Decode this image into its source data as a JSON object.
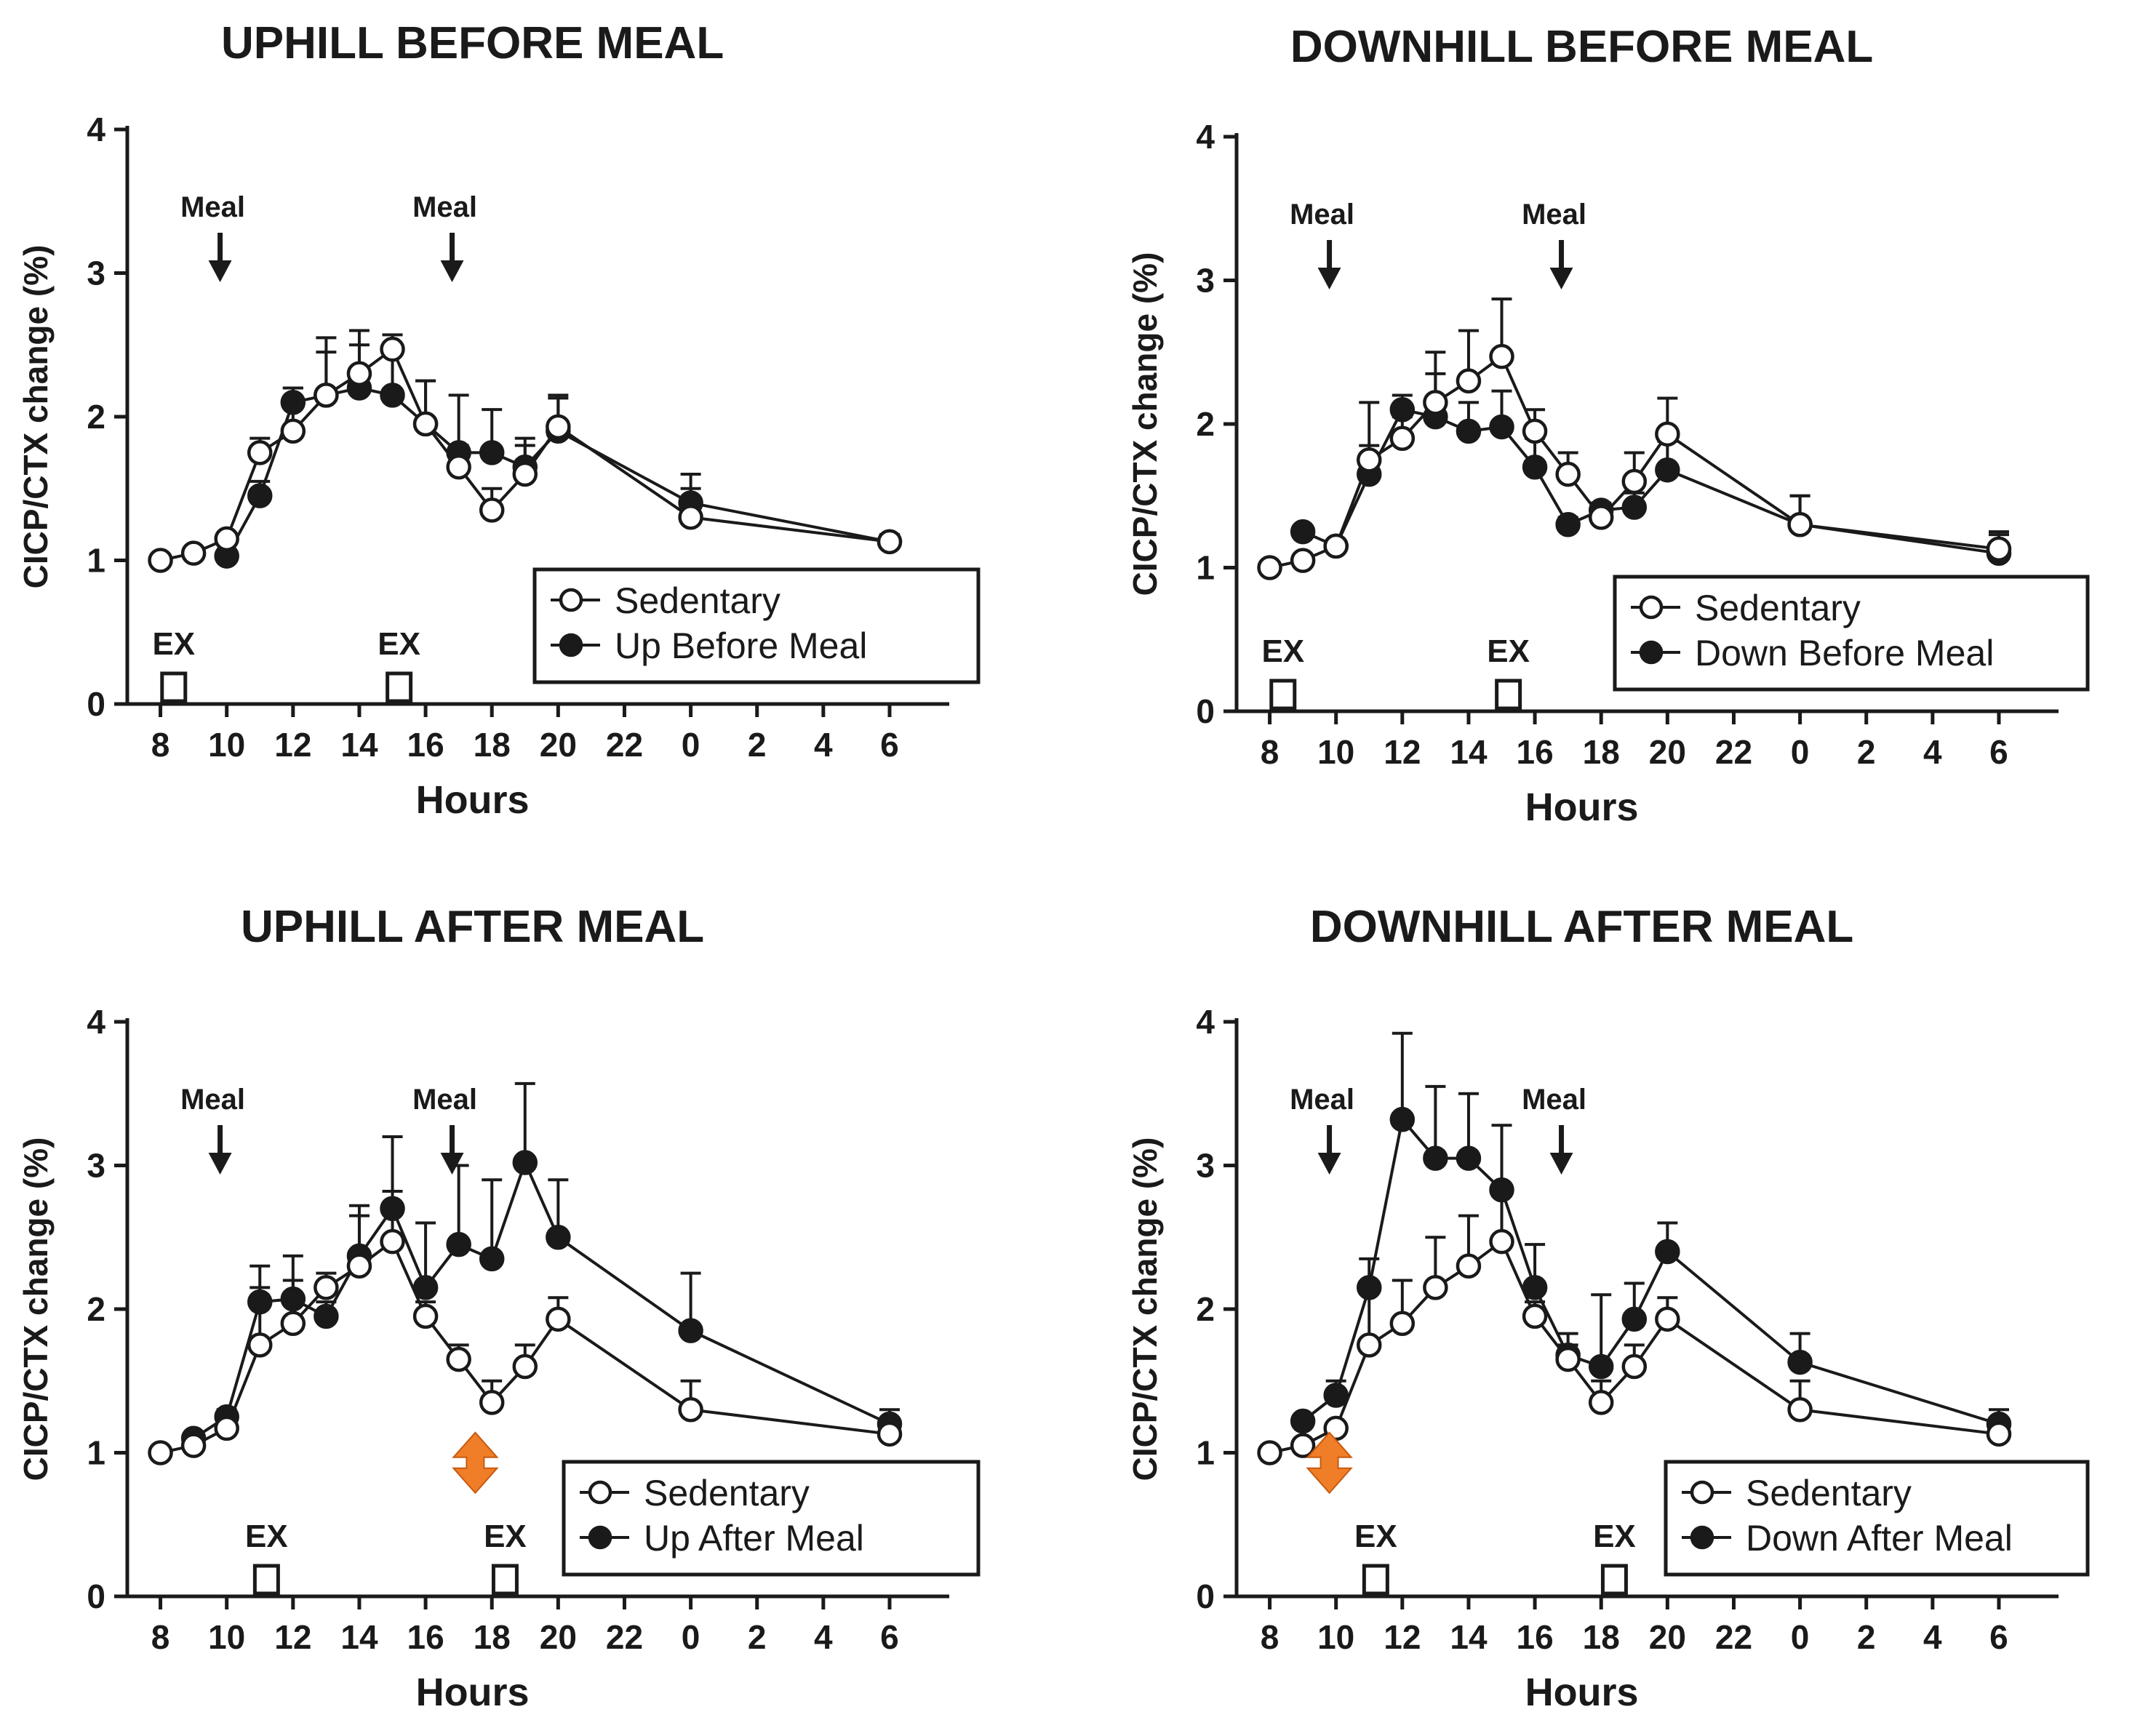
{
  "colors": {
    "ink": "#1a1a1a",
    "open_marker_fill": "#ffffff",
    "highlight_arrow": "#f07d27"
  },
  "chart_data": [
    {
      "type": "line",
      "title": "UPHILL BEFORE MEAL",
      "xlabel": "Hours",
      "ylabel": "CICP/CTX change (%)",
      "ylim": [
        0,
        4
      ],
      "yticks": [
        "0",
        "1",
        "2",
        "3",
        "4"
      ],
      "xticks": [
        "8",
        "10",
        "12",
        "14",
        "16",
        "18",
        "20",
        "22",
        "0",
        "2",
        "4",
        "6"
      ],
      "x": [
        8,
        9,
        10,
        11,
        12,
        13,
        14,
        15,
        16,
        17,
        18,
        19,
        20,
        24,
        30
      ],
      "meal_times": [
        9.8,
        16.8
      ],
      "meal_label": "Meal",
      "exercise_times": [
        8.4,
        15.2
      ],
      "exercise_label": "EX",
      "legend": [
        "Sedentary",
        "Up Before Meal"
      ],
      "legend_position": "bottom-right",
      "series": [
        {
          "name": "Sedentary",
          "marker": "open",
          "values": [
            1.0,
            1.05,
            1.15,
            1.75,
            1.9,
            2.15,
            2.3,
            2.47,
            1.95,
            1.65,
            1.35,
            1.6,
            1.93,
            1.3,
            1.13
          ],
          "error": [
            0,
            0,
            0,
            0.1,
            0.3,
            0.4,
            0.3,
            0.1,
            0.3,
            0.15,
            0.15,
            0.2,
            0.2,
            0.2,
            0.05
          ]
        },
        {
          "name": "Up Before Meal",
          "marker": "filled",
          "values": [
            null,
            null,
            1.03,
            1.45,
            2.1,
            2.15,
            2.2,
            2.15,
            1.95,
            1.75,
            1.75,
            1.65,
            1.9,
            1.4,
            1.13
          ],
          "error": [
            0,
            0,
            0,
            0.1,
            0.1,
            0.3,
            0.3,
            0.3,
            0.3,
            0.4,
            0.3,
            0.2,
            0.25,
            0.2,
            0.05
          ]
        }
      ]
    },
    {
      "type": "line",
      "title": "DOWNHILL BEFORE MEAL",
      "xlabel": "Hours",
      "ylabel": "CICP/CTX change (%)",
      "ylim": [
        0,
        4
      ],
      "yticks": [
        "0",
        "1",
        "2",
        "3",
        "4"
      ],
      "xticks": [
        "8",
        "10",
        "12",
        "14",
        "16",
        "18",
        "20",
        "22",
        "0",
        "2",
        "4",
        "6"
      ],
      "x": [
        8,
        9,
        10,
        11,
        12,
        13,
        14,
        15,
        16,
        17,
        18,
        19,
        20,
        24,
        30
      ],
      "meal_times": [
        9.8,
        16.8
      ],
      "meal_label": "Meal",
      "exercise_times": [
        8.4,
        15.2
      ],
      "exercise_label": "EX",
      "legend": [
        "Sedentary",
        "Down Before Meal"
      ],
      "legend_position": "bottom-right",
      "series": [
        {
          "name": "Sedentary",
          "marker": "open",
          "values": [
            1.0,
            1.05,
            1.15,
            1.75,
            1.9,
            2.15,
            2.3,
            2.47,
            1.95,
            1.65,
            1.35,
            1.6,
            1.93,
            1.3,
            1.13
          ],
          "error": [
            0,
            0,
            0,
            0.4,
            0.15,
            0.35,
            0.35,
            0.4,
            0.15,
            0.15,
            0.05,
            0.2,
            0.25,
            0.2,
            0.1
          ]
        },
        {
          "name": "Down Before Meal",
          "marker": "filled",
          "values": [
            null,
            1.25,
            1.15,
            1.65,
            2.1,
            2.05,
            1.95,
            1.98,
            1.7,
            1.3,
            1.4,
            1.42,
            1.68,
            1.3,
            1.1
          ],
          "error": [
            0,
            0,
            0,
            0.2,
            0.1,
            0.3,
            0.2,
            0.25,
            0.2,
            0.05,
            0.05,
            0.1,
            0.2,
            0.2,
            0.15
          ]
        }
      ]
    },
    {
      "type": "line",
      "title": "UPHILL AFTER MEAL",
      "xlabel": "Hours",
      "ylabel": "CICP/CTX change (%)",
      "ylim": [
        0,
        4
      ],
      "yticks": [
        "0",
        "1",
        "2",
        "3",
        "4"
      ],
      "xticks": [
        "8",
        "10",
        "12",
        "14",
        "16",
        "18",
        "20",
        "22",
        "0",
        "2",
        "4",
        "6"
      ],
      "x": [
        8,
        9,
        10,
        11,
        12,
        13,
        14,
        15,
        16,
        17,
        18,
        19,
        20,
        24,
        30
      ],
      "meal_times": [
        9.8,
        16.8
      ],
      "meal_label": "Meal",
      "exercise_times": [
        11.2,
        18.4
      ],
      "exercise_label": "EX",
      "legend": [
        "Sedentary",
        "Up After Meal"
      ],
      "legend_position": "bottom-right",
      "highlight_arrow_x": 17.5,
      "series": [
        {
          "name": "Sedentary",
          "marker": "open",
          "values": [
            1.0,
            1.05,
            1.17,
            1.75,
            1.9,
            2.15,
            2.3,
            2.47,
            1.95,
            1.65,
            1.35,
            1.6,
            1.93,
            1.3,
            1.13
          ],
          "error": [
            0,
            0,
            0,
            0.4,
            0.3,
            0.1,
            0.35,
            0.35,
            0.1,
            0.1,
            0.15,
            0.15,
            0.15,
            0.2,
            0.08
          ]
        },
        {
          "name": "Up After Meal",
          "marker": "filled",
          "values": [
            null,
            1.1,
            1.25,
            2.05,
            2.07,
            1.95,
            2.37,
            2.7,
            2.15,
            2.45,
            2.35,
            3.02,
            2.5,
            1.85,
            1.2
          ],
          "error": [
            0,
            0,
            0.05,
            0.25,
            0.3,
            0.1,
            0.35,
            0.5,
            0.45,
            0.55,
            0.55,
            0.55,
            0.4,
            0.4,
            0.1
          ]
        }
      ]
    },
    {
      "type": "line",
      "title": "DOWNHILL AFTER MEAL",
      "xlabel": "Hours",
      "ylabel": "CICP/CTX change (%)",
      "ylim": [
        0,
        4
      ],
      "yticks": [
        "0",
        "1",
        "2",
        "3",
        "4"
      ],
      "xticks": [
        "8",
        "10",
        "12",
        "14",
        "16",
        "18",
        "20",
        "22",
        "0",
        "2",
        "4",
        "6"
      ],
      "x": [
        8,
        9,
        10,
        11,
        12,
        13,
        14,
        15,
        16,
        17,
        18,
        19,
        20,
        24,
        30
      ],
      "meal_times": [
        9.8,
        16.8
      ],
      "meal_label": "Meal",
      "exercise_times": [
        11.2,
        18.4
      ],
      "exercise_label": "EX",
      "legend": [
        "Sedentary",
        "Down After Meal"
      ],
      "legend_position": "bottom-right",
      "highlight_arrow_x": 9.8,
      "series": [
        {
          "name": "Sedentary",
          "marker": "open",
          "values": [
            1.0,
            1.05,
            1.17,
            1.75,
            1.9,
            2.15,
            2.3,
            2.47,
            1.95,
            1.65,
            1.35,
            1.6,
            1.93,
            1.3,
            1.13
          ],
          "error": [
            0,
            0,
            0,
            0.4,
            0.3,
            0.35,
            0.35,
            0.35,
            0.1,
            0.1,
            0.15,
            0.15,
            0.15,
            0.2,
            0.08
          ]
        },
        {
          "name": "Down After Meal",
          "marker": "filled",
          "values": [
            null,
            1.22,
            1.4,
            2.15,
            3.32,
            3.05,
            3.05,
            2.83,
            2.15,
            1.68,
            1.6,
            1.93,
            2.4,
            1.63,
            1.2
          ],
          "error": [
            0,
            0,
            0.1,
            0.2,
            0.6,
            0.5,
            0.45,
            0.45,
            0.3,
            0.15,
            0.5,
            0.25,
            0.2,
            0.2,
            0.1
          ]
        }
      ]
    }
  ]
}
